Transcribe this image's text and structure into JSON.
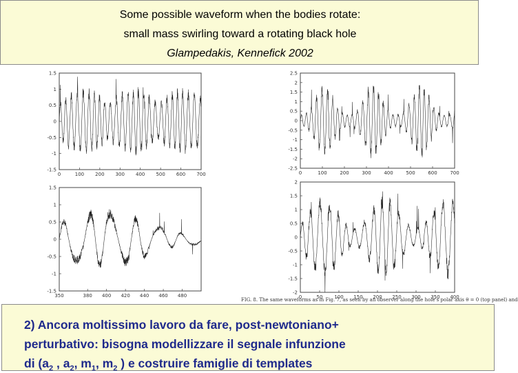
{
  "header": {
    "line1": "Some possible waveform when the bodies rotate:",
    "line2": "small mass swirling toward a rotating black hole",
    "citation": "Glampedakis, Kennefick 2002"
  },
  "figure_caption_fragment": "FIG. 8. The same waveforms as in Fig. 7, as seen by an observer along the hole's polar axis θ = 0 (top panel) and",
  "chart_data": [
    {
      "type": "line",
      "panel": "top-left",
      "xlim": [
        0,
        700
      ],
      "ylim": [
        -1.5,
        1.5
      ],
      "x_ticks": [
        "0",
        "100",
        "200",
        "300",
        "400",
        "500",
        "600",
        "700"
      ],
      "y_ticks": [
        "1.5",
        "1",
        "0.5",
        "0",
        "-0.5",
        "-1",
        "-1.5"
      ]
    },
    {
      "type": "line",
      "panel": "top-right",
      "xlim": [
        0,
        700
      ],
      "ylim": [
        -2.5,
        2.5
      ],
      "x_ticks": [
        "0",
        "100",
        "200",
        "300",
        "400",
        "500",
        "600",
        "700"
      ],
      "y_ticks": [
        "2.5",
        "2",
        "1.5",
        "1",
        "0.5",
        "0",
        "-0.5",
        "-1",
        "-1.5",
        "-2",
        "-2.5"
      ]
    },
    {
      "type": "line",
      "panel": "bottom-left",
      "xlim": [
        350,
        500
      ],
      "ylim": [
        -1.5,
        1.5
      ],
      "x_ticks": [
        "350",
        "380",
        "400",
        "420",
        "440",
        "460",
        "480"
      ],
      "y_ticks": [
        "1.5",
        "1",
        "0.5",
        "0",
        "-0.5",
        "-1",
        "-1.5"
      ]
    },
    {
      "type": "line",
      "panel": "bottom-right",
      "xlim": [
        0,
        400
      ],
      "ylim": [
        -2,
        2
      ],
      "x_ticks": [
        "0",
        "50",
        "100",
        "150",
        "200",
        "250",
        "300",
        "350",
        "400"
      ],
      "y_ticks": [
        "2",
        "1.5",
        "1",
        "0.5",
        "0",
        "-0.5",
        "-1",
        "-1.5",
        "-2"
      ]
    }
  ],
  "footer": {
    "line1": "2) Ancora moltissimo lavoro da fare, post-newtoniano+",
    "line2": "perturbativo: bisogna modellizzare  il segnale infunzione",
    "line3_prefix": "di (a",
    "sub_2a": "2",
    "sep1": " , a",
    "sub_2b": "2",
    "sep2": ", m",
    "sub_1": "1",
    "sep3": ", m",
    "sub_2c": "2",
    "line3_suffix": " ) e costruire famiglie di templates"
  },
  "colors": {
    "box_background": "#fbfbd6",
    "footer_text": "#1f2a8c"
  }
}
